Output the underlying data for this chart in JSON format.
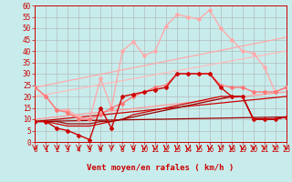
{
  "xlabel": "Vent moyen/en rafales ( km/h )",
  "xlim": [
    0,
    23
  ],
  "ylim": [
    0,
    60
  ],
  "yticks": [
    0,
    5,
    10,
    15,
    20,
    25,
    30,
    35,
    40,
    45,
    50,
    55,
    60
  ],
  "xticks": [
    0,
    1,
    2,
    3,
    4,
    5,
    6,
    7,
    8,
    9,
    10,
    11,
    12,
    13,
    14,
    15,
    16,
    17,
    18,
    19,
    20,
    21,
    22,
    23
  ],
  "bg_color": "#c8ecec",
  "grid_color": "#b0b0b0",
  "lines": [
    {
      "x": [
        0,
        23
      ],
      "y": [
        24,
        46
      ],
      "color": "#ffaaaa",
      "linewidth": 0.9,
      "marker": null
    },
    {
      "x": [
        0,
        23
      ],
      "y": [
        20,
        40
      ],
      "color": "#ffbbbb",
      "linewidth": 0.9,
      "marker": null
    },
    {
      "x": [
        0,
        23
      ],
      "y": [
        10,
        22
      ],
      "color": "#ff9999",
      "linewidth": 0.9,
      "marker": null
    },
    {
      "x": [
        0,
        23
      ],
      "y": [
        9,
        20
      ],
      "color": "#cc0000",
      "linewidth": 0.9,
      "marker": null
    },
    {
      "x": [
        0,
        23
      ],
      "y": [
        9,
        11
      ],
      "color": "#990000",
      "linewidth": 0.9,
      "marker": null
    },
    {
      "x": [
        0,
        1,
        2,
        3,
        4,
        5,
        6,
        7,
        8,
        9,
        10,
        11,
        12,
        13,
        14,
        15,
        16,
        17,
        18,
        19,
        20,
        21,
        22,
        23
      ],
      "y": [
        24,
        20,
        14,
        14,
        11,
        10,
        28,
        15,
        40,
        44,
        38,
        40,
        51,
        56,
        55,
        54,
        58,
        50,
        45,
        40,
        39,
        33,
        22,
        24
      ],
      "color": "#ffaaaa",
      "linewidth": 1.0,
      "marker": "D",
      "markersize": 2.0
    },
    {
      "x": [
        0,
        1,
        2,
        3,
        4,
        5,
        6,
        7,
        8,
        9,
        10,
        11,
        12,
        13,
        14,
        15,
        16,
        17,
        18,
        19,
        20,
        21,
        22,
        23
      ],
      "y": [
        24,
        20,
        14,
        13,
        10,
        10,
        12,
        15,
        17,
        20,
        22,
        24,
        25,
        30,
        30,
        30,
        30,
        25,
        24,
        24,
        22,
        22,
        22,
        24
      ],
      "color": "#ff7777",
      "linewidth": 1.0,
      "marker": "D",
      "markersize": 2.0
    },
    {
      "x": [
        0,
        1,
        2,
        3,
        4,
        5,
        6,
        7,
        8,
        9,
        10,
        11,
        12,
        13,
        14,
        15,
        16,
        17,
        18,
        19,
        20,
        21,
        22,
        23
      ],
      "y": [
        9,
        9,
        6,
        5,
        3,
        1,
        15,
        6,
        20,
        21,
        22,
        23,
        24,
        30,
        30,
        30,
        30,
        24,
        20,
        20,
        10,
        10,
        10,
        11
      ],
      "color": "#cc0000",
      "linewidth": 1.0,
      "marker": "D",
      "markersize": 2.0
    },
    {
      "x": [
        0,
        1,
        2,
        3,
        4,
        5,
        6,
        7,
        8,
        9,
        10,
        11,
        12,
        13,
        14,
        15,
        16,
        17,
        18,
        19,
        20,
        21,
        22,
        23
      ],
      "y": [
        9,
        9,
        8,
        7,
        7,
        7,
        8,
        9,
        10,
        12,
        13,
        14,
        15,
        16,
        17,
        18,
        19,
        20,
        20,
        20,
        10,
        10,
        10,
        11
      ],
      "color": "#cc0000",
      "linewidth": 0.9,
      "marker": null
    },
    {
      "x": [
        0,
        1,
        2,
        3,
        4,
        5,
        6,
        7,
        8,
        9,
        10,
        11,
        12,
        13,
        14,
        15,
        16,
        17,
        18,
        19,
        20,
        21,
        22,
        23
      ],
      "y": [
        9,
        9,
        9,
        8,
        8,
        8,
        9,
        9,
        10,
        11,
        12,
        13,
        14,
        15,
        16,
        17,
        18,
        19,
        20,
        20,
        10,
        10,
        10,
        11
      ],
      "color": "#990000",
      "linewidth": 0.9,
      "marker": null
    }
  ],
  "arrow_color": "#cc0000",
  "tick_fontsize": 5.5,
  "xlabel_fontsize": 6.5,
  "tick_color": "#cc0000",
  "axis_color": "#cc0000"
}
